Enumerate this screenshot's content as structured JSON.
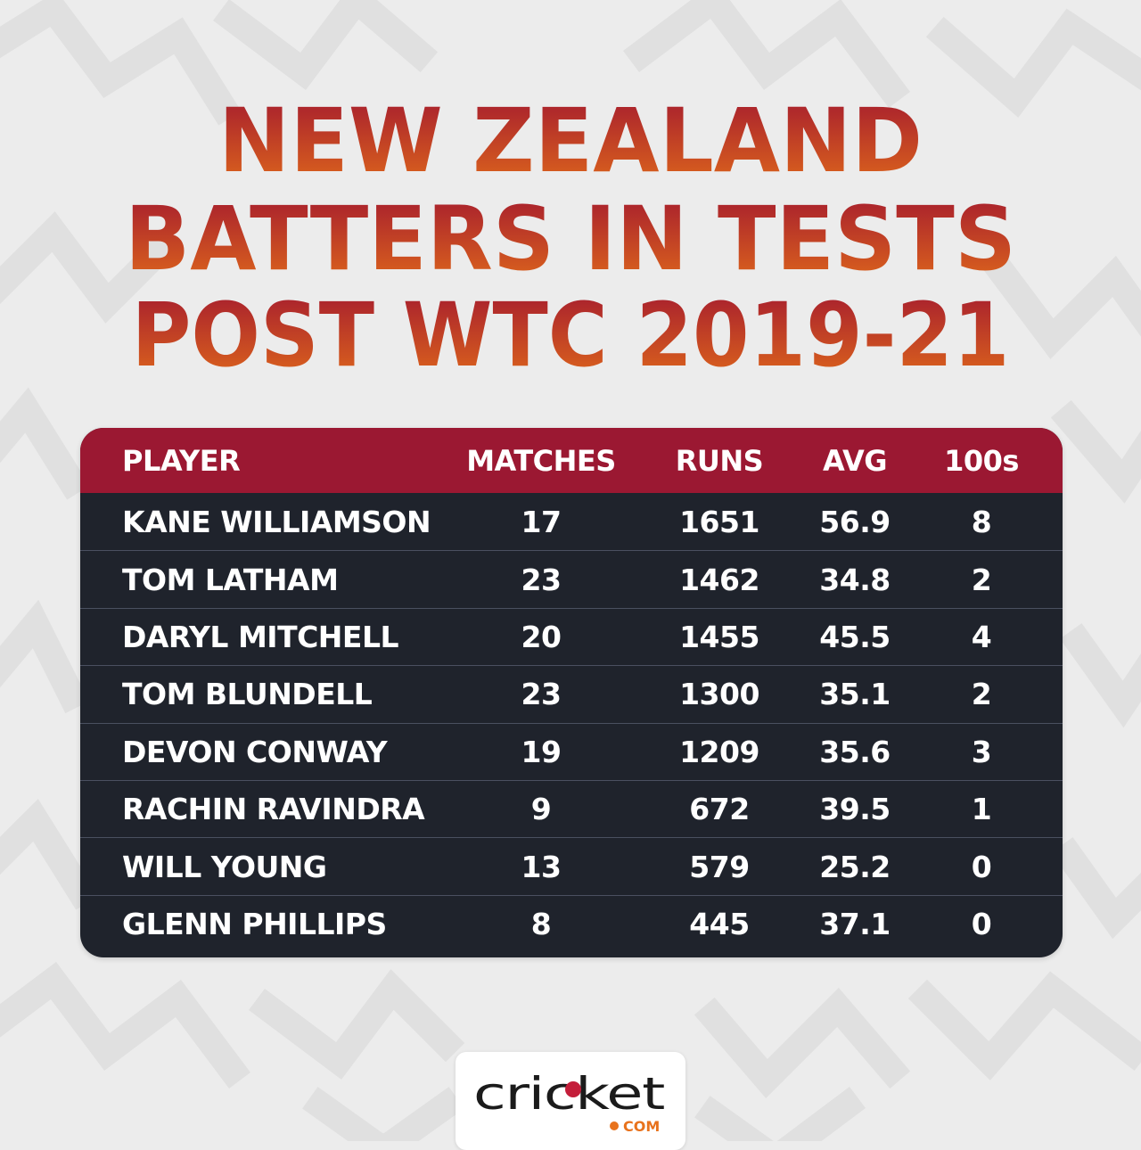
{
  "title": {
    "lines": [
      "NEW ZEALAND",
      "BATTERS IN TESTS",
      "POST WTC 2019-21"
    ]
  },
  "colors": {
    "title_top": "#a3192f",
    "title_bottom": "#e06a1b",
    "table_header_bg": "#9b1832",
    "table_body_bg": "#1f232c",
    "row_divider": "#4a5060",
    "page_bg": "#ececec"
  },
  "table": {
    "headers": {
      "player": "PLAYER",
      "matches": "MATCHES",
      "runs": "RUNS",
      "avg": "AVG",
      "hundreds": "100s"
    },
    "rows": [
      {
        "player": "KANE WILLIAMSON",
        "matches": "17",
        "runs": "1651",
        "avg": "56.9",
        "hundreds": "8"
      },
      {
        "player": "TOM LATHAM",
        "matches": "23",
        "runs": "1462",
        "avg": "34.8",
        "hundreds": "2"
      },
      {
        "player": "DARYL MITCHELL",
        "matches": "20",
        "runs": "1455",
        "avg": "45.5",
        "hundreds": "4"
      },
      {
        "player": "TOM BLUNDELL",
        "matches": "23",
        "runs": "1300",
        "avg": "35.1",
        "hundreds": "2"
      },
      {
        "player": "DEVON CONWAY",
        "matches": "19",
        "runs": "1209",
        "avg": "35.6",
        "hundreds": "3"
      },
      {
        "player": "RACHIN RAVINDRA",
        "matches": "9",
        "runs": "672",
        "avg": "39.5",
        "hundreds": "1"
      },
      {
        "player": "WILL YOUNG",
        "matches": "13",
        "runs": "579",
        "avg": "25.2",
        "hundreds": "0"
      },
      {
        "player": "GLENN PHILLIPS",
        "matches": "8",
        "runs": "445",
        "avg": "37.1",
        "hundreds": "0"
      }
    ]
  },
  "logo": {
    "icon": "cricket-com-logo",
    "wordmark": "cricket",
    "suffix": "COM"
  }
}
